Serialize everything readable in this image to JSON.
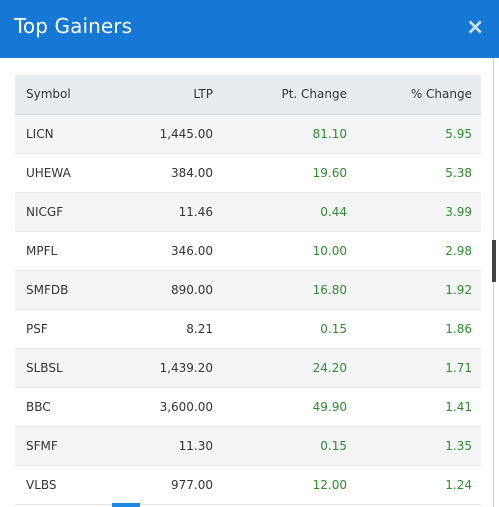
{
  "modal": {
    "title": "Top Gainers",
    "close_label": "×"
  },
  "columns": {
    "symbol": "Symbol",
    "ltp": "LTP",
    "pt_change": "Pt. Change",
    "pct_change": "% Change"
  },
  "rows": [
    {
      "symbol": "LICN",
      "ltp": "1,445.00",
      "pt_change": "81.10",
      "pct_change": "5.95"
    },
    {
      "symbol": "UHEWA",
      "ltp": "384.00",
      "pt_change": "19.60",
      "pct_change": "5.38"
    },
    {
      "symbol": "NICGF",
      "ltp": "11.46",
      "pt_change": "0.44",
      "pct_change": "3.99"
    },
    {
      "symbol": "MPFL",
      "ltp": "346.00",
      "pt_change": "10.00",
      "pct_change": "2.98"
    },
    {
      "symbol": "SMFDB",
      "ltp": "890.00",
      "pt_change": "16.80",
      "pct_change": "1.92"
    },
    {
      "symbol": "PSF",
      "ltp": "8.21",
      "pt_change": "0.15",
      "pct_change": "1.86"
    },
    {
      "symbol": "SLBSL",
      "ltp": "1,439.20",
      "pt_change": "24.20",
      "pct_change": "1.71"
    },
    {
      "symbol": "BBC",
      "ltp": "3,600.00",
      "pt_change": "49.90",
      "pct_change": "1.41"
    },
    {
      "symbol": "SFMF",
      "ltp": "11.30",
      "pt_change": "0.15",
      "pct_change": "1.35"
    },
    {
      "symbol": "VLBS",
      "ltp": "977.00",
      "pt_change": "12.00",
      "pct_change": "1.24"
    }
  ],
  "colors": {
    "header_bg": "#1478d4",
    "gain_text": "#2e8b2e",
    "table_head_bg": "#e9ecef"
  }
}
